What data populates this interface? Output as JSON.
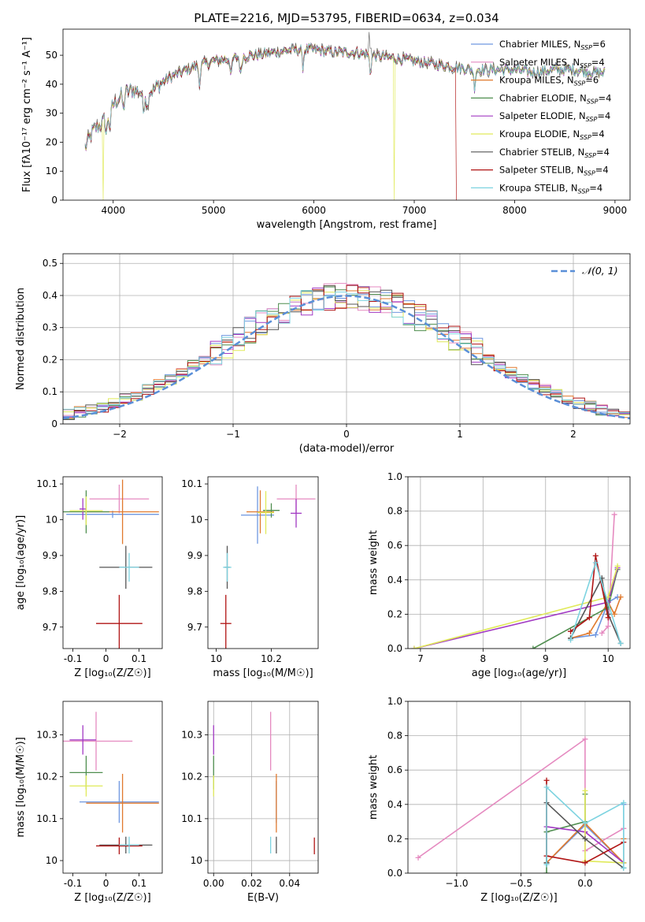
{
  "figure_title": "PLATE=2216, MJD=53795, FIBERID=0634, z=0.034",
  "colors": {
    "Chabrier MILES": "#6f97e0",
    "Salpeter MILES": "#e58ac0",
    "Kroupa MILES": "#e07a2e",
    "Chabrier ELODIE": "#4f8e4f",
    "Salpeter ELODIE": "#a23ac4",
    "Kroupa ELODIE": "#e0ea5a",
    "Chabrier STELIB": "#555555",
    "Salpeter STELIB": "#b01414",
    "Kroupa STELIB": "#7dd3e0"
  },
  "chart_data": [
    {
      "id": "spectrum",
      "type": "line",
      "title": "PLATE=2216, MJD=53795, FIBERID=0634, z=0.034",
      "xlabel": "wavelength [Angstrom, rest frame]",
      "ylabel": "Flux [fλ10⁻¹⁷ erg cm⁻² s⁻¹ A⁻¹]",
      "xlim": [
        3500,
        9150
      ],
      "ylim": [
        0,
        59
      ],
      "xticks": [
        4000,
        5000,
        6000,
        7000,
        8000,
        9000
      ],
      "yticks": [
        0,
        10,
        20,
        30,
        40,
        50
      ],
      "grid": false,
      "legend_position": "top-right",
      "legend": [
        {
          "model": "Chabrier MILES",
          "nssp": "6"
        },
        {
          "model": "Salpeter MILES",
          "nssp": "4"
        },
        {
          "model": "Kroupa MILES",
          "nssp": "6"
        },
        {
          "model": "Chabrier ELODIE",
          "nssp": "4"
        },
        {
          "model": "Salpeter ELODIE",
          "nssp": "4"
        },
        {
          "model": "Kroupa ELODIE",
          "nssp": "4"
        },
        {
          "model": "Chabrier STELIB",
          "nssp": "4"
        },
        {
          "model": "Salpeter STELIB",
          "nssp": "4"
        },
        {
          "model": "Kroupa STELIB",
          "nssp": "4"
        }
      ],
      "continuum": {
        "x": [
          3720,
          3800,
          3900,
          4000,
          4100,
          4200,
          4300,
          4400,
          4500,
          4600,
          4800,
          5000,
          5200,
          5400,
          5600,
          5800,
          6000,
          6200,
          6400,
          6600,
          6800,
          7000,
          7200,
          7400,
          7600,
          7800,
          8000,
          8200,
          8400,
          8600,
          8800,
          8900
        ],
        "y": [
          18,
          24,
          27,
          33,
          37,
          38,
          37,
          38,
          41,
          43,
          46,
          48,
          49,
          50,
          51,
          52,
          52,
          51,
          51,
          50,
          49,
          48,
          47,
          46,
          45,
          45,
          45,
          44,
          45,
          45,
          44,
          44
        ]
      },
      "cutoffs": [
        {
          "model": "Kroupa ELODIE",
          "x": 3900
        },
        {
          "model": "Kroupa ELODIE",
          "x": 6800
        },
        {
          "model": "Salpeter STELIB",
          "x": 7420
        }
      ]
    },
    {
      "id": "residuals",
      "type": "histogram",
      "xlabel": "(data-model)/error",
      "ylabel": "Normed distribution",
      "xlim": [
        -2.5,
        2.5
      ],
      "ylim": [
        0,
        0.53
      ],
      "xticks": [
        -2,
        -1,
        0,
        1,
        2
      ],
      "xtick_labels": [
        "−2",
        "−1",
        "0",
        "1",
        "2"
      ],
      "yticks": [
        0,
        0.1,
        0.2,
        0.3,
        0.4,
        0.5
      ],
      "grid": true,
      "legend_position": "top-right",
      "reference": {
        "label": "𝒩(0, 1)",
        "mean": 0,
        "sigma": 1
      },
      "bin_width": 0.1
    },
    {
      "id": "age_vs_Z",
      "type": "errorbar",
      "xlabel": "Z [log₁₀(Z/Z☉)]",
      "ylabel": "age  [log₁₀(age/yr)]",
      "xlim": [
        -0.13,
        0.17
      ],
      "ylim": [
        9.64,
        10.12
      ],
      "xticks": [
        -0.1,
        0.0,
        0.1
      ],
      "yticks": [
        9.7,
        9.8,
        9.9,
        10.0,
        10.1
      ],
      "grid": false,
      "points": [
        {
          "model": "Chabrier MILES",
          "x": 0.02,
          "y": 10.015,
          "xerr": 0.14,
          "yerr": 0.01
        },
        {
          "model": "Salpeter MILES",
          "x": 0.04,
          "y": 10.058,
          "xerr": 0.09,
          "yerr": 0.04
        },
        {
          "model": "Kroupa MILES",
          "x": 0.05,
          "y": 10.022,
          "xerr": 0.11,
          "yerr": 0.09
        },
        {
          "model": "Chabrier ELODIE",
          "x": -0.06,
          "y": 10.022,
          "xerr": 0.07,
          "yerr": 0.06
        },
        {
          "model": "Salpeter ELODIE",
          "x": -0.07,
          "y": 10.03,
          "xerr": 0.01,
          "yerr": 0.03
        },
        {
          "model": "Kroupa ELODIE",
          "x": -0.06,
          "y": 10.025,
          "xerr": 0.05,
          "yerr": 0.04
        },
        {
          "model": "Chabrier STELIB",
          "x": 0.06,
          "y": 9.867,
          "xerr": 0.08,
          "yerr": 0.06
        },
        {
          "model": "Salpeter STELIB",
          "x": 0.04,
          "y": 9.71,
          "xerr": 0.07,
          "yerr": 0.08
        },
        {
          "model": "Kroupa STELIB",
          "x": 0.07,
          "y": 9.867,
          "xerr": 0.03,
          "yerr": 0.04
        }
      ]
    },
    {
      "id": "age_vs_mass",
      "type": "errorbar",
      "xlabel": "mass [log₁₀(M/M☉)]",
      "xlim": [
        9.97,
        10.37
      ],
      "ylim": [
        9.64,
        10.12
      ],
      "xticks": [
        10.0,
        10.2
      ],
      "yticks": [
        9.7,
        9.8,
        9.9,
        10.0,
        10.1
      ],
      "grid": false,
      "points": [
        {
          "model": "Chabrier MILES",
          "x": 10.15,
          "y": 10.013,
          "xerr": 0.06,
          "yerr": 0.08
        },
        {
          "model": "Salpeter MILES",
          "x": 10.29,
          "y": 10.058,
          "xerr": 0.07,
          "yerr": 0.04
        },
        {
          "model": "Kroupa MILES",
          "x": 10.16,
          "y": 10.022,
          "xerr": 0.05,
          "yerr": 0.06
        },
        {
          "model": "Chabrier ELODIE",
          "x": 10.2,
          "y": 10.026,
          "xerr": 0.03,
          "yerr": 0.02
        },
        {
          "model": "Salpeter ELODIE",
          "x": 10.29,
          "y": 10.018,
          "xerr": 0.02,
          "yerr": 0.04
        },
        {
          "model": "Kroupa ELODIE",
          "x": 10.18,
          "y": 10.02,
          "xerr": 0.03,
          "yerr": 0.06
        },
        {
          "model": "Chabrier STELIB",
          "x": 10.04,
          "y": 9.867,
          "xerr": 0.01,
          "yerr": 0.06
        },
        {
          "model": "Salpeter STELIB",
          "x": 10.035,
          "y": 9.71,
          "xerr": 0.02,
          "yerr": 0.08
        },
        {
          "model": "Kroupa STELIB",
          "x": 10.04,
          "y": 9.867,
          "xerr": 0.015,
          "yerr": 0.04
        }
      ]
    },
    {
      "id": "weight_vs_age",
      "type": "line",
      "xlabel": "age  [log₁₀(age/yr)]",
      "ylabel": "mass weight",
      "xlim": [
        6.8,
        10.35
      ],
      "ylim": [
        0,
        1.0
      ],
      "xticks": [
        7,
        8,
        9,
        10
      ],
      "yticks": [
        0.0,
        0.2,
        0.4,
        0.6,
        0.8,
        1.0
      ],
      "grid": true,
      "series": [
        {
          "model": "Chabrier MILES",
          "x": [
            9.4,
            9.8,
            10.0,
            10.15
          ],
          "y": [
            0.06,
            0.08,
            0.27,
            0.3
          ]
        },
        {
          "model": "Salpeter MILES",
          "x": [
            9.9,
            10.0,
            10.1
          ],
          "y": [
            0.09,
            0.13,
            0.78
          ]
        },
        {
          "model": "Kroupa MILES",
          "x": [
            9.4,
            9.7,
            10.0,
            10.1,
            10.2
          ],
          "y": [
            0.06,
            0.09,
            0.27,
            0.2,
            0.3
          ]
        },
        {
          "model": "Chabrier ELODIE",
          "x": [
            8.8,
            10.0,
            10.15
          ],
          "y": [
            0.0,
            0.24,
            0.46
          ]
        },
        {
          "model": "Salpeter ELODIE",
          "x": [
            6.9,
            10.0,
            10.15
          ],
          "y": [
            0.0,
            0.27,
            0.47
          ]
        },
        {
          "model": "Kroupa ELODIE",
          "x": [
            6.9,
            10.0,
            10.15
          ],
          "y": [
            0.0,
            0.3,
            0.48
          ]
        },
        {
          "model": "Chabrier STELIB",
          "x": [
            9.4,
            9.9,
            10.0,
            10.2
          ],
          "y": [
            0.06,
            0.41,
            0.2,
            0.03
          ]
        },
        {
          "model": "Salpeter STELIB",
          "x": [
            9.4,
            9.7,
            9.8,
            10.0
          ],
          "y": [
            0.1,
            0.18,
            0.54,
            0.18
          ]
        },
        {
          "model": "Kroupa STELIB",
          "x": [
            9.4,
            9.8,
            10.2
          ],
          "y": [
            0.05,
            0.5,
            0.03
          ]
        }
      ]
    },
    {
      "id": "mass_vs_Z",
      "type": "errorbar",
      "xlabel": "Z [log₁₀(Z/Z☉)]",
      "ylabel": "mass [log₁₀(M/M☉)]",
      "xlim": [
        -0.13,
        0.17
      ],
      "ylim": [
        9.97,
        10.38
      ],
      "xticks": [
        -0.1,
        0.0,
        0.1
      ],
      "yticks": [
        10.0,
        10.1,
        10.2,
        10.3
      ],
      "grid": false,
      "points": [
        {
          "model": "Chabrier MILES",
          "x": 0.04,
          "y": 10.14,
          "xerr": 0.12,
          "yerr": 0.05
        },
        {
          "model": "Salpeter MILES",
          "x": -0.03,
          "y": 10.285,
          "xerr": 0.11,
          "yerr": 0.07
        },
        {
          "model": "Kroupa MILES",
          "x": 0.05,
          "y": 10.137,
          "xerr": 0.11,
          "yerr": 0.07
        },
        {
          "model": "Chabrier ELODIE",
          "x": -0.06,
          "y": 10.21,
          "xerr": 0.05,
          "yerr": 0.04
        },
        {
          "model": "Salpeter ELODIE",
          "x": -0.07,
          "y": 10.288,
          "xerr": 0.04,
          "yerr": 0.035
        },
        {
          "model": "Kroupa ELODIE",
          "x": -0.06,
          "y": 10.178,
          "xerr": 0.05,
          "yerr": 0.025
        },
        {
          "model": "Chabrier STELIB",
          "x": 0.06,
          "y": 10.037,
          "xerr": 0.08,
          "yerr": 0.02
        },
        {
          "model": "Salpeter STELIB",
          "x": 0.04,
          "y": 10.035,
          "xerr": 0.07,
          "yerr": 0.02
        },
        {
          "model": "Kroupa STELIB",
          "x": 0.07,
          "y": 10.037,
          "xerr": 0.03,
          "yerr": 0.02
        }
      ]
    },
    {
      "id": "mass_vs_ebv",
      "type": "errorbar",
      "xlabel": "E(B-V)",
      "xlim": [
        -0.003,
        0.055
      ],
      "ylim": [
        9.97,
        10.38
      ],
      "xticks": [
        0.0,
        0.02,
        0.04
      ],
      "xtick_labels": [
        "0.00",
        "0.02",
        "0.04"
      ],
      "yticks": [
        10.0,
        10.1,
        10.2,
        10.3
      ],
      "grid": true,
      "points": [
        {
          "model": "Chabrier MILES",
          "x": 0.033,
          "y": 10.14,
          "xerr": 0.0,
          "yerr": 0.05
        },
        {
          "model": "Salpeter MILES",
          "x": 0.03,
          "y": 10.285,
          "xerr": 0.0,
          "yerr": 0.07
        },
        {
          "model": "Kroupa MILES",
          "x": 0.033,
          "y": 10.137,
          "xerr": 0.0,
          "yerr": 0.07
        },
        {
          "model": "Chabrier ELODIE",
          "x": 0.0,
          "y": 10.21,
          "xerr": 0.0,
          "yerr": 0.04
        },
        {
          "model": "Salpeter ELODIE",
          "x": 0.0,
          "y": 10.288,
          "xerr": 0.0,
          "yerr": 0.035
        },
        {
          "model": "Kroupa ELODIE",
          "x": 0.0,
          "y": 10.178,
          "xerr": 0.0,
          "yerr": 0.025
        },
        {
          "model": "Chabrier STELIB",
          "x": 0.033,
          "y": 10.037,
          "xerr": 0.0,
          "yerr": 0.02
        },
        {
          "model": "Salpeter STELIB",
          "x": 0.053,
          "y": 10.035,
          "xerr": 0.0,
          "yerr": 0.02
        },
        {
          "model": "Kroupa STELIB",
          "x": 0.03,
          "y": 10.037,
          "xerr": 0.0,
          "yerr": 0.02
        }
      ]
    },
    {
      "id": "weight_vs_Z",
      "type": "line",
      "xlabel": "Z [log₁₀(Z/Z☉)]",
      "ylabel": "mass weight",
      "xlim": [
        -1.38,
        0.35
      ],
      "ylim": [
        0,
        1.0
      ],
      "xticks": [
        -1.0,
        -0.5,
        0.0
      ],
      "xtick_labels": [
        "−1.0",
        "−0.5",
        "0.0"
      ],
      "yticks": [
        0.0,
        0.2,
        0.4,
        0.6,
        0.8,
        1.0
      ],
      "grid": true,
      "series": [
        {
          "model": "Chabrier MILES",
          "x": [
            -0.3,
            0.0,
            0.3,
            0.3
          ],
          "y": [
            0.06,
            0.28,
            0.06,
            0.4
          ]
        },
        {
          "model": "Salpeter MILES",
          "x": [
            -1.3,
            0.0,
            0.0,
            0.3
          ],
          "y": [
            0.09,
            0.78,
            0.13,
            0.26
          ]
        },
        {
          "model": "Kroupa MILES",
          "x": [
            -0.3,
            0.0,
            0.3,
            0.3
          ],
          "y": [
            0.06,
            0.29,
            0.06,
            0.2
          ]
        },
        {
          "model": "Chabrier ELODIE",
          "x": [
            -0.3,
            -0.3,
            0.0,
            0.0
          ],
          "y": [
            0.0,
            0.24,
            0.3,
            0.46
          ]
        },
        {
          "model": "Salpeter ELODIE",
          "x": [
            -0.3,
            0.0,
            0.3
          ],
          "y": [
            0.27,
            0.24,
            0.06
          ]
        },
        {
          "model": "Kroupa ELODIE",
          "x": [
            0.0,
            0.0,
            0.3
          ],
          "y": [
            0.48,
            0.07,
            0.06
          ]
        },
        {
          "model": "Chabrier STELIB",
          "x": [
            -0.3,
            -0.3,
            0.0,
            0.3
          ],
          "y": [
            0.06,
            0.41,
            0.2,
            0.03
          ]
        },
        {
          "model": "Salpeter STELIB",
          "x": [
            -0.3,
            -0.3,
            0.0,
            0.3
          ],
          "y": [
            0.54,
            0.1,
            0.06,
            0.18
          ]
        },
        {
          "model": "Kroupa STELIB",
          "x": [
            -0.3,
            -0.3,
            0.0,
            0.3,
            0.3
          ],
          "y": [
            0.05,
            0.5,
            0.29,
            0.41,
            0.03
          ]
        }
      ]
    }
  ]
}
